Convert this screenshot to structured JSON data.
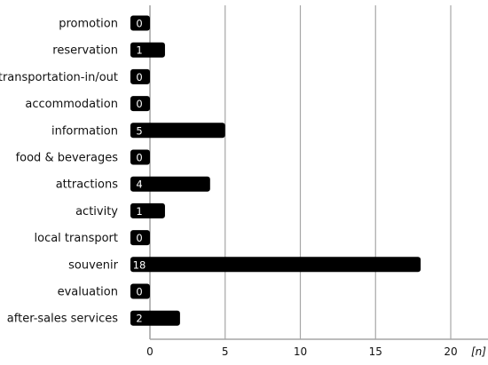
{
  "chart_data": {
    "type": "bar",
    "orientation": "horizontal",
    "categories": [
      "promotion",
      "reservation",
      "transportation-in/out",
      "accommodation",
      "information",
      "food & beverages",
      "attractions",
      "activity",
      "local transport",
      "souvenir",
      "evaluation",
      "after-sales services"
    ],
    "values": [
      0,
      1,
      0,
      0,
      5,
      0,
      4,
      1,
      0,
      18,
      0,
      2
    ],
    "value_labels": [
      "0",
      "1",
      "0",
      "0",
      "5",
      "0",
      "4",
      "1",
      "0",
      "18",
      "0",
      "2"
    ],
    "xlim": [
      0,
      22
    ],
    "x_ticks": [
      0,
      5,
      10,
      15,
      20
    ],
    "x_tick_labels": [
      "0",
      "5",
      "10",
      "15",
      "20"
    ],
    "x_unit_label": "[n]",
    "grid": "vertical",
    "bar_color": "#000000",
    "grid_color": "#a6a6a6",
    "legend": "none"
  }
}
